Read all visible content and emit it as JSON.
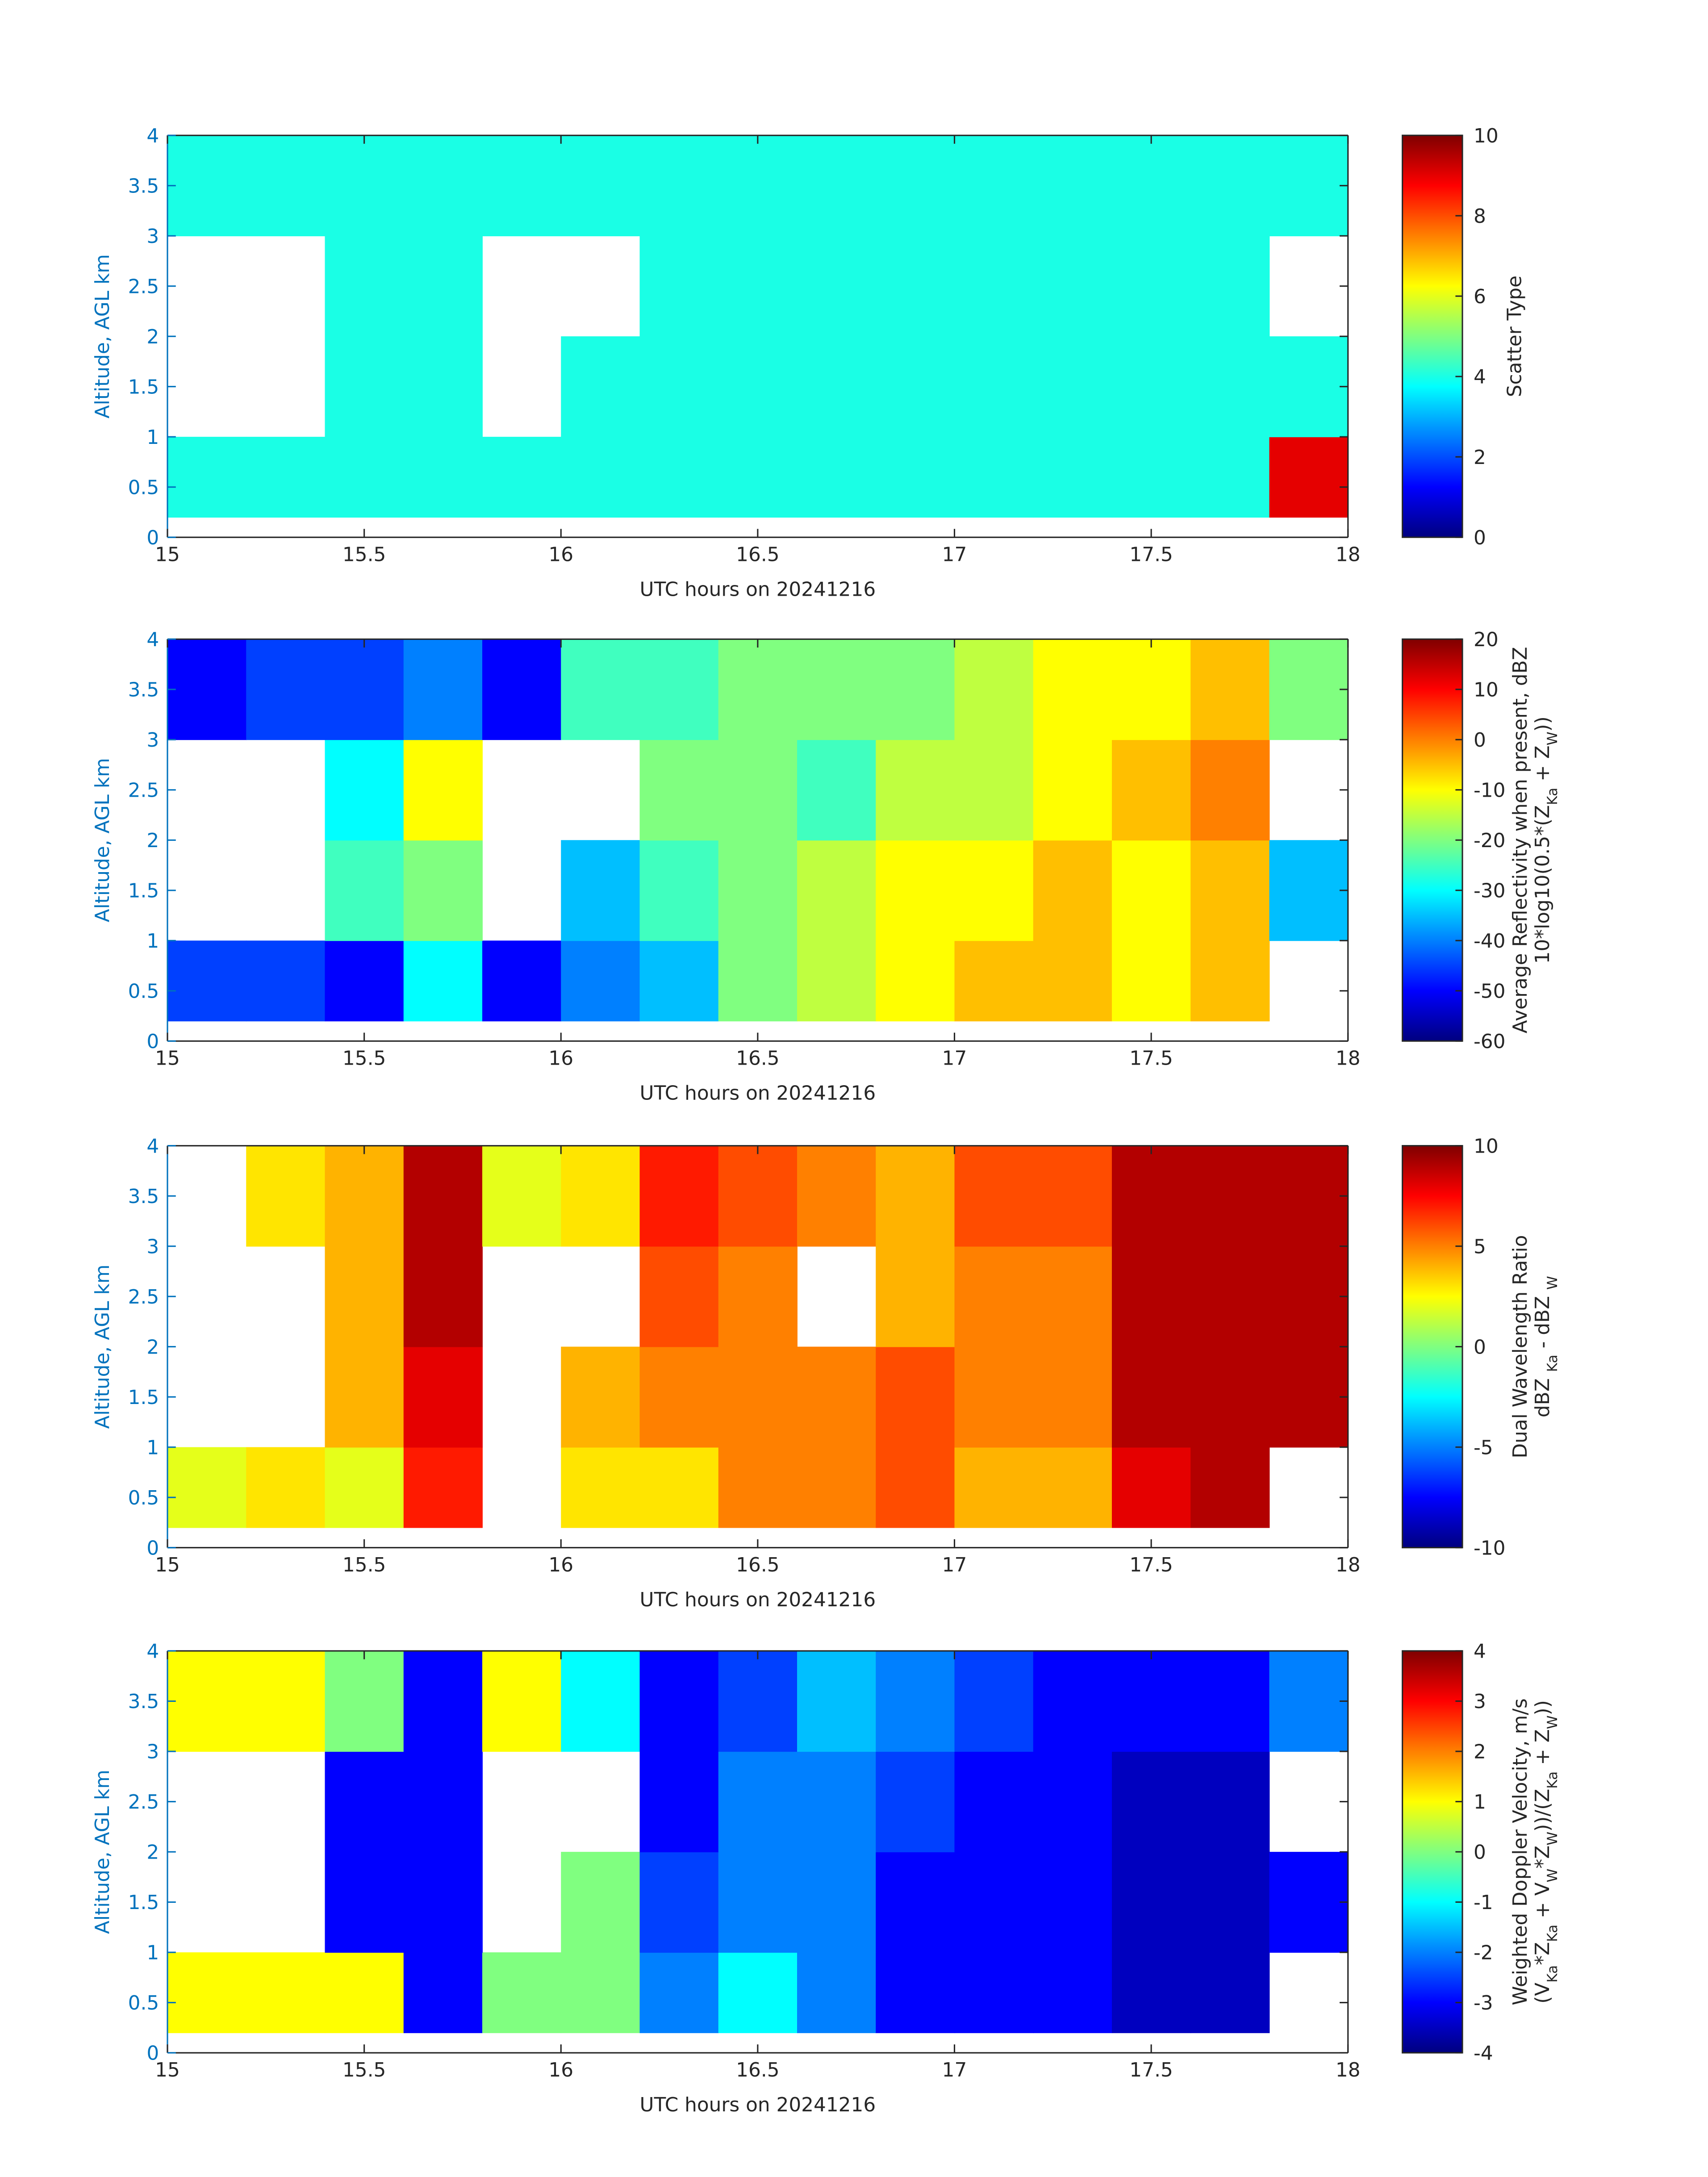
{
  "chart_data": [
    {
      "type": "heatmap",
      "xlabel": "UTC hours on 20241216",
      "ylabel": "Altitude, AGL km",
      "xlim": [
        15,
        18
      ],
      "xticks": [
        15,
        15.5,
        16,
        16.5,
        17,
        17.5,
        18
      ],
      "ylim": [
        0,
        4
      ],
      "yticks": [
        0,
        0.5,
        1,
        1.5,
        2,
        2.5,
        3,
        3.5,
        4
      ],
      "xbins": [
        15,
        15.2,
        15.4,
        15.6,
        15.8,
        16,
        16.2,
        16.4,
        16.6,
        16.8,
        17,
        17.2,
        17.4,
        17.6,
        17.8,
        18
      ],
      "ybins": [
        0.2,
        1,
        2,
        3,
        4
      ],
      "z": [
        [
          4,
          4,
          4,
          4,
          4,
          4,
          4,
          4,
          4,
          4,
          4,
          4,
          4,
          4,
          9
        ],
        [
          null,
          null,
          4,
          4,
          null,
          4,
          4,
          4,
          4,
          4,
          4,
          4,
          4,
          4,
          4
        ],
        [
          null,
          null,
          4,
          4,
          null,
          null,
          4,
          4,
          4,
          4,
          4,
          4,
          4,
          4,
          null
        ],
        [
          4,
          4,
          4,
          4,
          4,
          4,
          4,
          4,
          4,
          4,
          4,
          4,
          4,
          4,
          4
        ]
      ],
      "colorbar": {
        "label": [
          [
            "Scatter Type"
          ]
        ],
        "clim": [
          0,
          10
        ],
        "ticks": [
          0,
          2,
          4,
          6,
          8,
          10
        ],
        "colormap": "jet"
      }
    },
    {
      "type": "heatmap",
      "xlabel": "UTC hours on 20241216",
      "ylabel": "Altitude, AGL km",
      "xlim": [
        15,
        18
      ],
      "xticks": [
        15,
        15.5,
        16,
        16.5,
        17,
        17.5,
        18
      ],
      "ylim": [
        0,
        4
      ],
      "yticks": [
        0,
        0.5,
        1,
        1.5,
        2,
        2.5,
        3,
        3.5,
        4
      ],
      "xbins": [
        15,
        15.2,
        15.4,
        15.6,
        15.8,
        16,
        16.2,
        16.4,
        16.6,
        16.8,
        17,
        17.2,
        17.4,
        17.6,
        17.8,
        18
      ],
      "ybins": [
        0.2,
        1,
        2,
        3,
        4
      ],
      "z": [
        [
          -45,
          -45,
          -50,
          -30,
          -50,
          -40,
          -35,
          -20,
          -15,
          -10,
          -5,
          -5,
          -10,
          -5,
          null
        ],
        [
          null,
          null,
          -25,
          -20,
          null,
          -35,
          -25,
          -20,
          -15,
          -10,
          -10,
          -5,
          -10,
          -5,
          -35
        ],
        [
          null,
          null,
          -30,
          -10,
          null,
          null,
          -20,
          -20,
          -25,
          -15,
          -15,
          -10,
          -5,
          0,
          null
        ],
        [
          -50,
          -45,
          -45,
          -40,
          -50,
          -25,
          -25,
          -20,
          -20,
          -20,
          -15,
          -10,
          -10,
          -5,
          -20
        ]
      ],
      "colorbar": {
        "label": [
          [
            "Average Reflectivity when present, dBZ"
          ],
          [
            "10*log10(0.5*(Z",
            "Ka",
            " + Z",
            "W",
            "))"
          ]
        ],
        "clim": [
          -60,
          20
        ],
        "ticks": [
          -60,
          -50,
          -40,
          -30,
          -20,
          -10,
          0,
          10,
          20
        ],
        "colormap": "jet"
      }
    },
    {
      "type": "heatmap",
      "xlabel": "UTC hours on 20241216",
      "ylabel": "Altitude, AGL km",
      "xlim": [
        15,
        18
      ],
      "xticks": [
        15,
        15.5,
        16,
        16.5,
        17,
        17.5,
        18
      ],
      "ylim": [
        0,
        4
      ],
      "yticks": [
        0,
        0.5,
        1,
        1.5,
        2,
        2.5,
        3,
        3.5,
        4
      ],
      "xbins": [
        15,
        15.2,
        15.4,
        15.6,
        15.8,
        16,
        16.2,
        16.4,
        16.6,
        16.8,
        17,
        17.2,
        17.4,
        17.6,
        17.8,
        18
      ],
      "ybins": [
        0.2,
        1,
        2,
        3,
        4
      ],
      "z": [
        [
          2,
          3,
          2,
          7,
          null,
          3,
          3,
          5,
          5,
          6,
          4,
          4,
          8,
          9,
          null
        ],
        [
          null,
          null,
          4,
          8,
          null,
          4,
          5,
          5,
          5,
          6,
          5,
          5,
          9,
          9,
          9
        ],
        [
          null,
          null,
          4,
          9,
          null,
          null,
          6,
          5,
          null,
          4,
          5,
          5,
          9,
          9,
          9
        ],
        [
          null,
          3,
          4,
          9,
          2,
          3,
          7,
          6,
          5,
          4,
          6,
          6,
          9,
          9,
          9
        ]
      ],
      "colorbar": {
        "label": [
          [
            "Dual Wavelength Ratio"
          ],
          [
            "dBZ ",
            "Ka",
            " - dBZ ",
            "W"
          ]
        ],
        "clim": [
          -10,
          10
        ],
        "ticks": [
          -10,
          -5,
          0,
          5,
          10
        ],
        "colormap": "jet"
      }
    },
    {
      "type": "heatmap",
      "xlabel": "UTC hours on 20241216",
      "ylabel": "Altitude, AGL km",
      "xlim": [
        15,
        18
      ],
      "xticks": [
        15,
        15.5,
        16,
        16.5,
        17,
        17.5,
        18
      ],
      "ylim": [
        0,
        4
      ],
      "yticks": [
        0,
        0.5,
        1,
        1.5,
        2,
        2.5,
        3,
        3.5,
        4
      ],
      "xbins": [
        15,
        15.2,
        15.4,
        15.6,
        15.8,
        16,
        16.2,
        16.4,
        16.6,
        16.8,
        17,
        17.2,
        17.4,
        17.6,
        17.8,
        18
      ],
      "ybins": [
        0.2,
        1,
        2,
        3,
        4
      ],
      "z": [
        [
          1,
          1,
          1,
          -3,
          0,
          0,
          -2,
          -1,
          -2,
          -3,
          -3,
          -3,
          -3.5,
          -3.5,
          null
        ],
        [
          null,
          null,
          -3,
          -3,
          null,
          0,
          -2.5,
          -2,
          -2,
          -3,
          -3,
          -3,
          -3.5,
          -3.5,
          -3
        ],
        [
          null,
          null,
          -3,
          -3,
          null,
          null,
          -3,
          -2,
          -2,
          -2.5,
          -3,
          -3,
          -3.5,
          -3.5,
          null
        ],
        [
          1,
          1,
          0,
          -3,
          1,
          -1,
          -3,
          -2.5,
          -1.5,
          -2,
          -2.5,
          -3,
          -3,
          -3,
          -2
        ]
      ],
      "colorbar": {
        "label": [
          [
            "Weighted Doppler Velocity, m/s"
          ],
          [
            "(V",
            "Ka",
            "*Z",
            "Ka",
            " + V",
            "W",
            "*Z",
            "W",
            "))/(Z",
            "Ka",
            " + Z",
            "W",
            "))"
          ]
        ],
        "clim": [
          -4,
          4
        ],
        "ticks": [
          -4,
          -3,
          -2,
          -1,
          0,
          1,
          2,
          3,
          4
        ],
        "colormap": "jet"
      }
    }
  ]
}
